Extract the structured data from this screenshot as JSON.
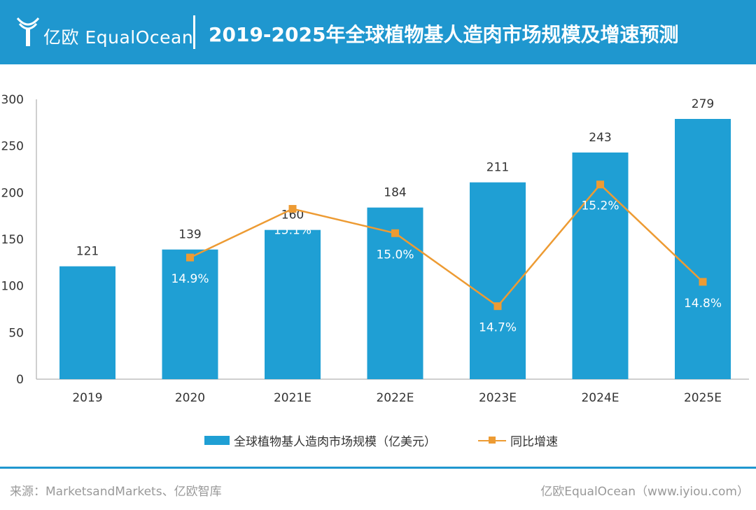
{
  "header": {
    "logo_text": "亿欧 EqualOcean",
    "title": "2019-2025年全球植物基人造肉市场规模及增速预测",
    "background_color": "#1f97cf"
  },
  "chart_data": {
    "type": "bar",
    "categories": [
      "2019",
      "2020",
      "2021E",
      "2022E",
      "2023E",
      "2024E",
      "2025E"
    ],
    "series": [
      {
        "name": "全球植物基人造肉市场规模（亿美元）",
        "type": "bar",
        "axis": "left",
        "values": [
          121,
          139,
          160,
          184,
          211,
          243,
          279
        ],
        "data_labels": [
          "121",
          "139",
          "160",
          "184",
          "211",
          "243",
          "279"
        ],
        "color": "#1f9fd4"
      },
      {
        "name": "同比增速",
        "type": "line",
        "axis": "secondary",
        "values": [
          null,
          14.9,
          15.1,
          15.0,
          14.7,
          15.2,
          14.8
        ],
        "data_labels": [
          "",
          "14.9%",
          "15.1%",
          "15.0%",
          "14.7%",
          "15.2%",
          "14.8%"
        ],
        "color": "#ed9b33",
        "marker": "square"
      }
    ],
    "ylim": [
      0,
      300
    ],
    "yticks": [
      "0",
      "50",
      "100",
      "150",
      "200",
      "250",
      "300"
    ],
    "grid": false,
    "legend_position": "bottom"
  },
  "legend": {
    "bar_label": "全球植物基人造肉市场规模（亿美元）",
    "line_label": "同比增速"
  },
  "footer": {
    "source": "来源：MarketsandMarkets、亿欧智库",
    "credit": "亿欧EqualOcean（www.iyiou.com）"
  }
}
